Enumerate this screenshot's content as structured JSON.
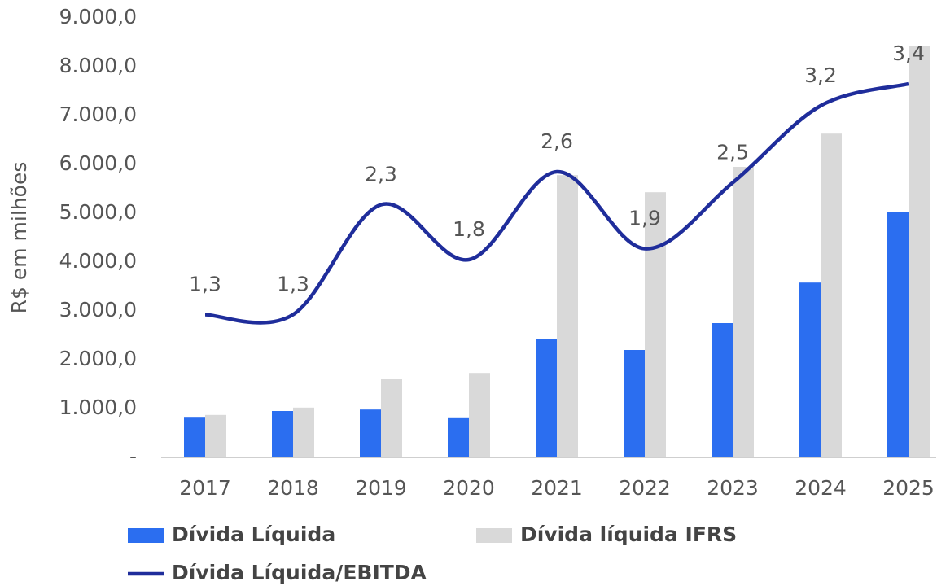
{
  "chart_data": {
    "type": "bar_line",
    "y_axis_label": "R$ em milhões",
    "categories": [
      "2017",
      "2018",
      "2019",
      "2020",
      "2021",
      "2022",
      "2023",
      "2024",
      "2025"
    ],
    "series": [
      {
        "name": "Dívida Líquida",
        "type": "bar",
        "color": "#2b6ef0",
        "values": [
          830,
          950,
          980,
          820,
          2430,
          2200,
          2750,
          3580,
          5030
        ]
      },
      {
        "name": "Dívida líquida IFRS",
        "type": "bar",
        "color": "#d9d9d9",
        "values": [
          870,
          1020,
          1600,
          1730,
          5780,
          5430,
          5950,
          6630,
          8420
        ]
      },
      {
        "name": "Dívida Líquida/EBITDA",
        "type": "line",
        "axis": "y2",
        "color": "#1f2d9b",
        "values": [
          1.3,
          1.3,
          2.3,
          1.8,
          2.6,
          1.9,
          2.5,
          3.2,
          3.4
        ],
        "value_labels": [
          "1,3",
          "1,3",
          "2,3",
          "1,8",
          "2,6",
          "1,9",
          "2,5",
          "3,2",
          "3,4"
        ]
      }
    ],
    "ylim": [
      0,
      9000
    ],
    "yticks": [
      {
        "value": 0,
        "label": "-"
      },
      {
        "value": 1000,
        "label": "1.000,0"
      },
      {
        "value": 2000,
        "label": "2.000,0"
      },
      {
        "value": 3000,
        "label": "3.000,0"
      },
      {
        "value": 4000,
        "label": "4.000,0"
      },
      {
        "value": 5000,
        "label": "5.000,0"
      },
      {
        "value": 6000,
        "label": "6.000,0"
      },
      {
        "value": 7000,
        "label": "7.000,0"
      },
      {
        "value": 8000,
        "label": "8.000,0"
      },
      {
        "value": 9000,
        "label": "9.000,0"
      }
    ],
    "y2lim": [
      0,
      4
    ],
    "grid": false
  }
}
